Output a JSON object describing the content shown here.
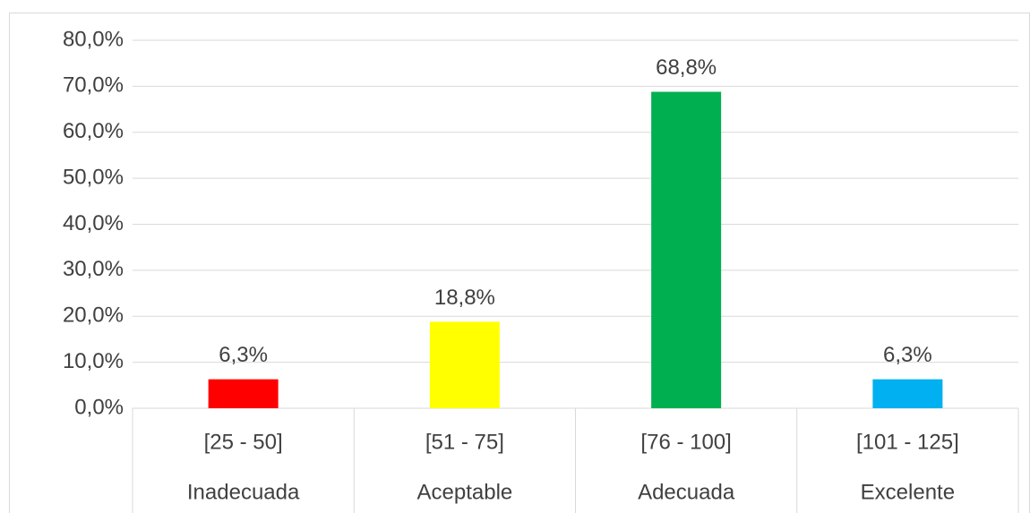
{
  "chart_data": {
    "type": "bar",
    "categories": [
      "[25 - 50]",
      "[51 - 75]",
      "[76 - 100]",
      "[101 - 125]"
    ],
    "category_labels": [
      "Inadecuada",
      "Aceptable",
      "Adecuada",
      "Excelente"
    ],
    "values": [
      6.3,
      18.8,
      68.8,
      6.3
    ],
    "value_labels": [
      "6,3%",
      "18,8%",
      "68,8%",
      "6,3%"
    ],
    "colors": [
      "#ff0000",
      "#ffff00",
      "#00b050",
      "#00b0f0"
    ],
    "ylim": [
      0,
      80
    ],
    "yticks": [
      {
        "value": 0,
        "label": "0,0%"
      },
      {
        "value": 10,
        "label": "10,0%"
      },
      {
        "value": 20,
        "label": "20,0%"
      },
      {
        "value": 30,
        "label": "30,0%"
      },
      {
        "value": 40,
        "label": "40,0%"
      },
      {
        "value": 50,
        "label": "50,0%"
      },
      {
        "value": 60,
        "label": "60,0%"
      },
      {
        "value": 70,
        "label": "70,0%"
      },
      {
        "value": 80,
        "label": "80,0%"
      }
    ],
    "grid": true
  }
}
